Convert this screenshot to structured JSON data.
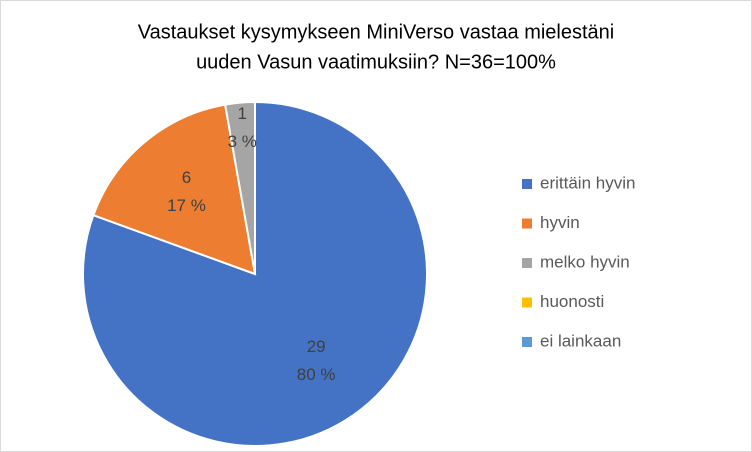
{
  "chart_data": {
    "type": "pie",
    "title": [
      "Vastaukset kysymykseen MiniVerso vastaa mielestäni",
      "uuden Vasun vaatimuksiin? N=36=100%"
    ],
    "categories": [
      "erittäin hyvin",
      "hyvin",
      "melko hyvin",
      "huonosti",
      "ei lainkaan"
    ],
    "values": [
      29,
      6,
      1,
      0,
      0
    ],
    "percent_labels": [
      "80 %",
      "17 %",
      "3 %",
      null,
      null
    ],
    "colors": [
      "#4472c4",
      "#ed7d31",
      "#a5a5a5",
      "#ffc000",
      "#5b9bd5"
    ],
    "legend": "right"
  }
}
